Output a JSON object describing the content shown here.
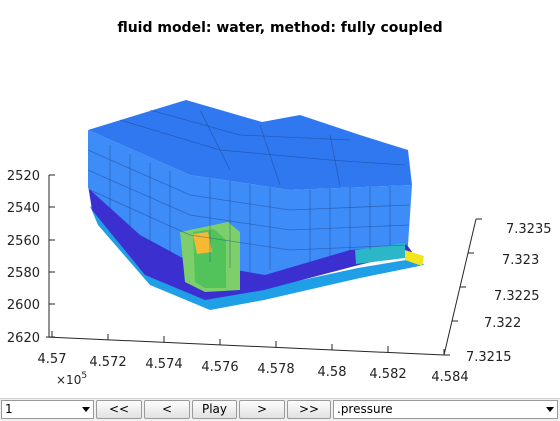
{
  "figure": {
    "title": "fluid model: water, method: fully coupled",
    "x_axis": {
      "ticks": [
        "4.57",
        "4.572",
        "4.574",
        "4.576",
        "4.578",
        "4.58",
        "4.582",
        "4.584"
      ],
      "exponent_base": "×10",
      "exponent_power": "5"
    },
    "y_axis": {
      "ticks": [
        "7.3215",
        "7.322",
        "7.3225",
        "7.323",
        "7.3235"
      ]
    },
    "z_axis": {
      "ticks": [
        "2520",
        "2540",
        "2560",
        "2580",
        "2600",
        "2620"
      ]
    },
    "colors": {
      "top_surface": "#2f78f0",
      "side_face": "#3d8cf7",
      "dark_layer": "#3b2fd0",
      "bottom_layer": "#1f9fe6",
      "hot_cell": "#f7b933",
      "warm_cells": "#7ccf6a",
      "cyan_cells": "#2bb7c8",
      "yellow_edge": "#f2e51c",
      "grid_line": "#1a3a80"
    }
  },
  "controls": {
    "step_select": "1",
    "first_label": "<<",
    "prev_label": "<",
    "play_label": "Play",
    "next_label": ">",
    "last_label": ">>",
    "field_select": ".pressure"
  }
}
